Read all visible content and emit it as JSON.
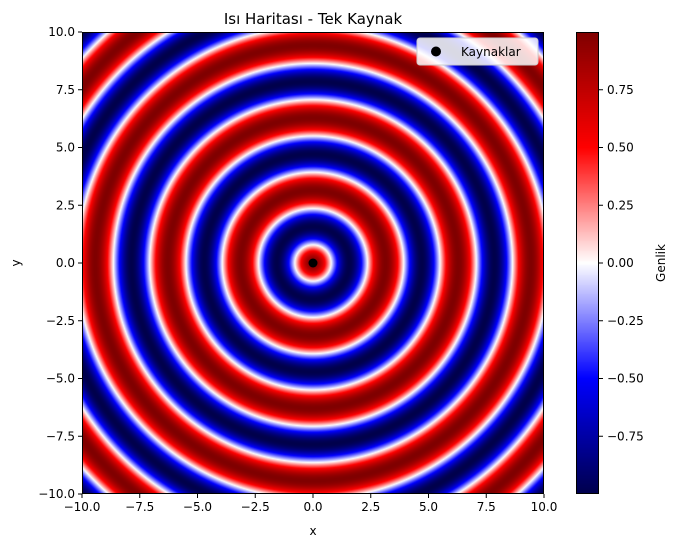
{
  "chart_data": {
    "type": "heatmap",
    "title": "Isı Haritası - Tek Kaynak",
    "xlabel": "x",
    "ylabel": "y",
    "xlim": [
      -10.0,
      10.0
    ],
    "ylim": [
      -10.0,
      10.0
    ],
    "xticks": [
      "−10.0",
      "−7.5",
      "−5.0",
      "−2.5",
      "0.0",
      "2.5",
      "5.0",
      "7.5",
      "10.0"
    ],
    "yticks": [
      "−10.0",
      "−7.5",
      "−5.0",
      "−2.5",
      "0.0",
      "2.5",
      "5.0",
      "7.5",
      "10.0"
    ],
    "field": "cos(2*r), r = sqrt(x^2 + y^2)",
    "colormap": "seismic",
    "grid": false,
    "sources": [
      {
        "x": 0.0,
        "y": 0.0
      }
    ],
    "legend": {
      "placement": "top-right",
      "entries": [
        "Kaynaklar"
      ]
    },
    "colorbar": {
      "label": "Genlik",
      "range": [
        -1.0,
        1.0
      ],
      "ticks": [
        0.75,
        0.5,
        0.25,
        0.0,
        -0.25,
        -0.5,
        -0.75
      ],
      "tick_labels": [
        "0.75",
        "0.50",
        "0.25",
        "0.00",
        "−0.25",
        "−0.50",
        "−0.75"
      ]
    }
  }
}
